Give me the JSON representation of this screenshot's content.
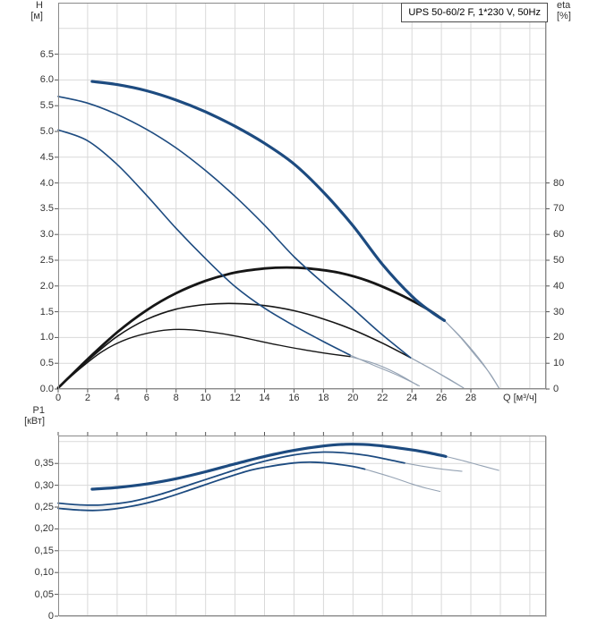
{
  "colors": {
    "curve_blue": "#1d4b80",
    "curve_black": "#161616",
    "faded_gray": "#94a2b3",
    "grid": "#d9d9d9",
    "plot_border": "#8a8a8a",
    "tick": "#555555",
    "text": "#333333",
    "title_text": "#000000",
    "background": "#ffffff"
  },
  "chart_data": [
    {
      "type": "line",
      "id": "head-efficiency-chart",
      "title": "UPS 50-60/2 F, 1*230 V, 50Hz",
      "xlabel": "Q [м³/ч]",
      "ylabel_left": [
        "H",
        "[м]"
      ],
      "ylabel_right": [
        "eta",
        "[%]"
      ],
      "xlim": [
        0,
        33.1
      ],
      "ylim": [
        0,
        7.5
      ],
      "y2lim": [
        0,
        150
      ],
      "y2_to_y1": 0.05,
      "grid": true,
      "legend_position": "none",
      "x_labels": true,
      "x_tick_side": "bottom",
      "grid_x": [
        2,
        4,
        6,
        8,
        10,
        12,
        14,
        16,
        18,
        20,
        22,
        24,
        26,
        28,
        30,
        32
      ],
      "grid_y": [
        0.5,
        1,
        1.5,
        2,
        2.5,
        3,
        3.5,
        4,
        4.5,
        5,
        5.5,
        6,
        6.5,
        7
      ],
      "x_ticks": [
        [
          0,
          "0"
        ],
        [
          2,
          "2"
        ],
        [
          4,
          "4"
        ],
        [
          6,
          "6"
        ],
        [
          8,
          "8"
        ],
        [
          10,
          "10"
        ],
        [
          12,
          "12"
        ],
        [
          14,
          "14"
        ],
        [
          16,
          "16"
        ],
        [
          18,
          "18"
        ],
        [
          20,
          "20"
        ],
        [
          22,
          "22"
        ],
        [
          24,
          "24"
        ],
        [
          26,
          "26"
        ],
        [
          28,
          "28"
        ]
      ],
      "y_ticks": [
        [
          0,
          "0.0"
        ],
        [
          0.5,
          "0.5"
        ],
        [
          1,
          "1.0"
        ],
        [
          1.5,
          "1.5"
        ],
        [
          2,
          "2.0"
        ],
        [
          2.5,
          "2.5"
        ],
        [
          3,
          "3.0"
        ],
        [
          3.5,
          "3.5"
        ],
        [
          4,
          "4.0"
        ],
        [
          4.5,
          "4.5"
        ],
        [
          5,
          "5.0"
        ],
        [
          5.5,
          "5.5"
        ],
        [
          6,
          "6.0"
        ],
        [
          6.5,
          "6.5"
        ]
      ],
      "y2_ticks": [
        [
          0,
          "0"
        ],
        [
          10,
          "10"
        ],
        [
          20,
          "20"
        ],
        [
          30,
          "30"
        ],
        [
          40,
          "40"
        ],
        [
          50,
          "50"
        ],
        [
          60,
          "60"
        ],
        [
          70,
          "70"
        ],
        [
          80,
          "80"
        ]
      ],
      "series": [
        {
          "name": "efficiency-curve-speed-1",
          "axis": "eta (right, % = 20 x H-units)",
          "color": "#161616",
          "width": 1.4,
          "solid": [
            [
              0,
              0.02
            ],
            [
              1.5,
              0.4
            ],
            [
              3,
              0.73
            ],
            [
              4.5,
              0.95
            ],
            [
              6,
              1.08
            ],
            [
              7.5,
              1.15
            ],
            [
              9,
              1.15
            ],
            [
              10.5,
              1.1
            ],
            [
              12,
              1.03
            ],
            [
              13.5,
              0.94
            ],
            [
              15,
              0.85
            ],
            [
              16.5,
              0.77
            ],
            [
              18,
              0.7
            ],
            [
              19.8,
              0.63
            ]
          ],
          "faded": [
            [
              19.8,
              0.63
            ],
            [
              21.5,
              0.49
            ],
            [
              23,
              0.3
            ],
            [
              24.4,
              0.07
            ]
          ]
        },
        {
          "name": "efficiency-curve-speed-2",
          "axis": "eta (right, % = 20 x H-units)",
          "color": "#161616",
          "width": 1.6,
          "solid": [
            [
              0,
              0.02
            ],
            [
              2,
              0.55
            ],
            [
              4,
              1.02
            ],
            [
              6,
              1.35
            ],
            [
              8,
              1.55
            ],
            [
              10,
              1.64
            ],
            [
              12,
              1.66
            ],
            [
              14,
              1.62
            ],
            [
              16,
              1.52
            ],
            [
              18,
              1.36
            ],
            [
              20,
              1.15
            ],
            [
              22,
              0.89
            ],
            [
              23.9,
              0.61
            ]
          ],
          "faded": [
            [
              23.9,
              0.61
            ],
            [
              25.5,
              0.36
            ],
            [
              26.6,
              0.18
            ],
            [
              27.5,
              0.02
            ]
          ]
        },
        {
          "name": "efficiency-curve-speed-3",
          "axis": "eta (right, % = 20 x H-units)",
          "color": "#161616",
          "width": 2.8,
          "solid": [
            [
              0,
              0.02
            ],
            [
              2,
              0.58
            ],
            [
              4,
              1.1
            ],
            [
              6,
              1.53
            ],
            [
              8,
              1.86
            ],
            [
              10,
              2.1
            ],
            [
              12,
              2.26
            ],
            [
              14,
              2.34
            ],
            [
              15.5,
              2.36
            ],
            [
              17,
              2.34
            ],
            [
              19,
              2.26
            ],
            [
              21,
              2.1
            ],
            [
              23,
              1.86
            ],
            [
              25,
              1.56
            ],
            [
              26.2,
              1.33
            ]
          ],
          "faded": [
            [
              26.2,
              1.33
            ],
            [
              27.5,
              0.95
            ],
            [
              28.8,
              0.5
            ],
            [
              29.9,
              0.02
            ]
          ]
        },
        {
          "name": "head-curve-speed-1",
          "axis": "H (left)",
          "color": "#1d4b80",
          "width": 1.6,
          "solid": [
            [
              0,
              5.03
            ],
            [
              2,
              4.82
            ],
            [
              4,
              4.36
            ],
            [
              6,
              3.76
            ],
            [
              8,
              3.12
            ],
            [
              10,
              2.53
            ],
            [
              12,
              1.99
            ],
            [
              14,
              1.57
            ],
            [
              16,
              1.23
            ],
            [
              18,
              0.92
            ],
            [
              19.8,
              0.66
            ]
          ],
          "faded": [
            [
              19.8,
              0.66
            ],
            [
              21.5,
              0.45
            ],
            [
              23,
              0.27
            ],
            [
              24.5,
              0.06
            ]
          ]
        },
        {
          "name": "head-curve-speed-2",
          "axis": "H (left)",
          "color": "#1d4b80",
          "width": 1.6,
          "solid": [
            [
              0,
              5.68
            ],
            [
              2,
              5.55
            ],
            [
              4,
              5.33
            ],
            [
              6,
              5.04
            ],
            [
              8,
              4.68
            ],
            [
              10,
              4.24
            ],
            [
              12,
              3.74
            ],
            [
              14,
              3.18
            ],
            [
              16,
              2.57
            ],
            [
              18,
              2.05
            ],
            [
              20,
              1.56
            ],
            [
              21.8,
              1.1
            ],
            [
              23.9,
              0.61
            ]
          ],
          "faded": [
            [
              23.9,
              0.61
            ],
            [
              25.3,
              0.39
            ],
            [
              26.5,
              0.19
            ],
            [
              27.5,
              0.02
            ]
          ]
        },
        {
          "name": "head-curve-speed-3",
          "axis": "H (left)",
          "color": "#1d4b80",
          "width": 3.2,
          "solid": [
            [
              2.3,
              5.97
            ],
            [
              4,
              5.91
            ],
            [
              6,
              5.79
            ],
            [
              8,
              5.61
            ],
            [
              10,
              5.38
            ],
            [
              12,
              5.1
            ],
            [
              14,
              4.77
            ],
            [
              16,
              4.37
            ],
            [
              18,
              3.82
            ],
            [
              20,
              3.17
            ],
            [
              22,
              2.42
            ],
            [
              24,
              1.8
            ],
            [
              25.3,
              1.5
            ],
            [
              26.2,
              1.33
            ]
          ],
          "faded": [
            [
              26.2,
              1.33
            ],
            [
              27.3,
              1.0
            ],
            [
              28.4,
              0.62
            ],
            [
              29.3,
              0.3
            ],
            [
              29.9,
              0.02
            ]
          ]
        }
      ]
    },
    {
      "type": "line",
      "id": "power-chart",
      "title": "",
      "xlabel": "",
      "ylabel_left": [
        "P1",
        "[кВт]"
      ],
      "xlim": [
        0,
        33.1
      ],
      "ylim": [
        0,
        0.414
      ],
      "grid": true,
      "legend_position": "none",
      "x_labels": false,
      "x_tick_side": "top",
      "grid_x": [
        2,
        4,
        6,
        8,
        10,
        12,
        14,
        16,
        18,
        20,
        22,
        24,
        26,
        28,
        30,
        32
      ],
      "grid_y": [
        0.05,
        0.1,
        0.15,
        0.2,
        0.25,
        0.3,
        0.35,
        0.4
      ],
      "x_ticks": [
        [
          0,
          ""
        ],
        [
          2,
          ""
        ],
        [
          4,
          ""
        ],
        [
          6,
          ""
        ],
        [
          8,
          ""
        ],
        [
          10,
          ""
        ],
        [
          12,
          ""
        ],
        [
          14,
          ""
        ],
        [
          16,
          ""
        ],
        [
          18,
          ""
        ],
        [
          20,
          ""
        ],
        [
          22,
          ""
        ],
        [
          24,
          ""
        ],
        [
          26,
          ""
        ],
        [
          28,
          ""
        ]
      ],
      "y_ticks": [
        [
          0,
          "0"
        ],
        [
          0.05,
          "0,05"
        ],
        [
          0.1,
          "0,10"
        ],
        [
          0.15,
          "0,15"
        ],
        [
          0.2,
          "0,20"
        ],
        [
          0.25,
          "0,25"
        ],
        [
          0.3,
          "0,30"
        ],
        [
          0.35,
          "0,35"
        ]
      ],
      "y2_ticks": [],
      "series": [
        {
          "name": "power-curve-speed-1",
          "axis": "P1 (left)",
          "color": "#1d4b80",
          "width": 1.8,
          "solid": [
            [
              0,
              0.247
            ],
            [
              1.5,
              0.243
            ],
            [
              3,
              0.243
            ],
            [
              5,
              0.252
            ],
            [
              7,
              0.268
            ],
            [
              9,
              0.29
            ],
            [
              11,
              0.313
            ],
            [
              13,
              0.334
            ],
            [
              14.5,
              0.344
            ],
            [
              16,
              0.351
            ],
            [
              17.2,
              0.353
            ],
            [
              18.5,
              0.35
            ],
            [
              20,
              0.343
            ],
            [
              20.8,
              0.337
            ]
          ],
          "faded": [
            [
              20.8,
              0.337
            ],
            [
              22.5,
              0.32
            ],
            [
              24,
              0.303
            ],
            [
              25,
              0.293
            ],
            [
              25.9,
              0.286
            ]
          ]
        },
        {
          "name": "power-curve-speed-2",
          "axis": "P1 (left)",
          "color": "#1d4b80",
          "width": 1.8,
          "solid": [
            [
              0,
              0.259
            ],
            [
              1.5,
              0.255
            ],
            [
              3,
              0.255
            ],
            [
              5,
              0.263
            ],
            [
              7,
              0.28
            ],
            [
              9,
              0.302
            ],
            [
              11,
              0.324
            ],
            [
              13,
              0.346
            ],
            [
              15,
              0.363
            ],
            [
              16.5,
              0.372
            ],
            [
              18,
              0.376
            ],
            [
              19.5,
              0.374
            ],
            [
              21,
              0.368
            ],
            [
              22.5,
              0.358
            ],
            [
              23.5,
              0.351
            ]
          ],
          "faded": [
            [
              23.5,
              0.351
            ],
            [
              25,
              0.342
            ],
            [
              26.3,
              0.336
            ],
            [
              27.4,
              0.332
            ]
          ]
        },
        {
          "name": "power-curve-speed-3",
          "axis": "P1 (left)",
          "color": "#1d4b80",
          "width": 3.2,
          "solid": [
            [
              2.3,
              0.291
            ],
            [
              4,
              0.295
            ],
            [
              6,
              0.303
            ],
            [
              8,
              0.315
            ],
            [
              10,
              0.331
            ],
            [
              12,
              0.349
            ],
            [
              14,
              0.366
            ],
            [
              16,
              0.38
            ],
            [
              18,
              0.39
            ],
            [
              19.5,
              0.394
            ],
            [
              21,
              0.393
            ],
            [
              22.5,
              0.388
            ],
            [
              24,
              0.381
            ],
            [
              25.2,
              0.374
            ],
            [
              26.3,
              0.366
            ]
          ],
          "faded": [
            [
              26.3,
              0.366
            ],
            [
              27.5,
              0.356
            ],
            [
              28.7,
              0.345
            ],
            [
              29.9,
              0.334
            ]
          ]
        }
      ]
    }
  ]
}
